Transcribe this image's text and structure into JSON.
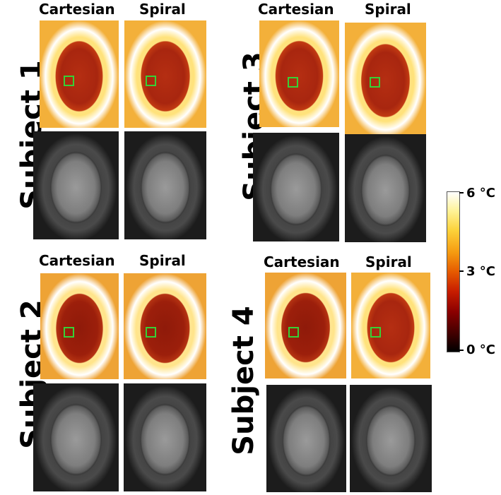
{
  "column_labels": {
    "cartesian": "Cartesian",
    "spiral": "Spiral"
  },
  "subjects": [
    {
      "label": "Subject 1"
    },
    {
      "label": "Subject 2"
    },
    {
      "label": "Subject 3"
    },
    {
      "label": "Subject 4"
    }
  ],
  "colorbar": {
    "max_label": "6 °C",
    "mid_label": "3 °C",
    "min_label": "0 °C",
    "colormap": "hot",
    "colors": [
      "#000000",
      "#8b0000",
      "#e65a00",
      "#fcd23a",
      "#ffffff"
    ]
  },
  "roi_color": "#36d136"
}
